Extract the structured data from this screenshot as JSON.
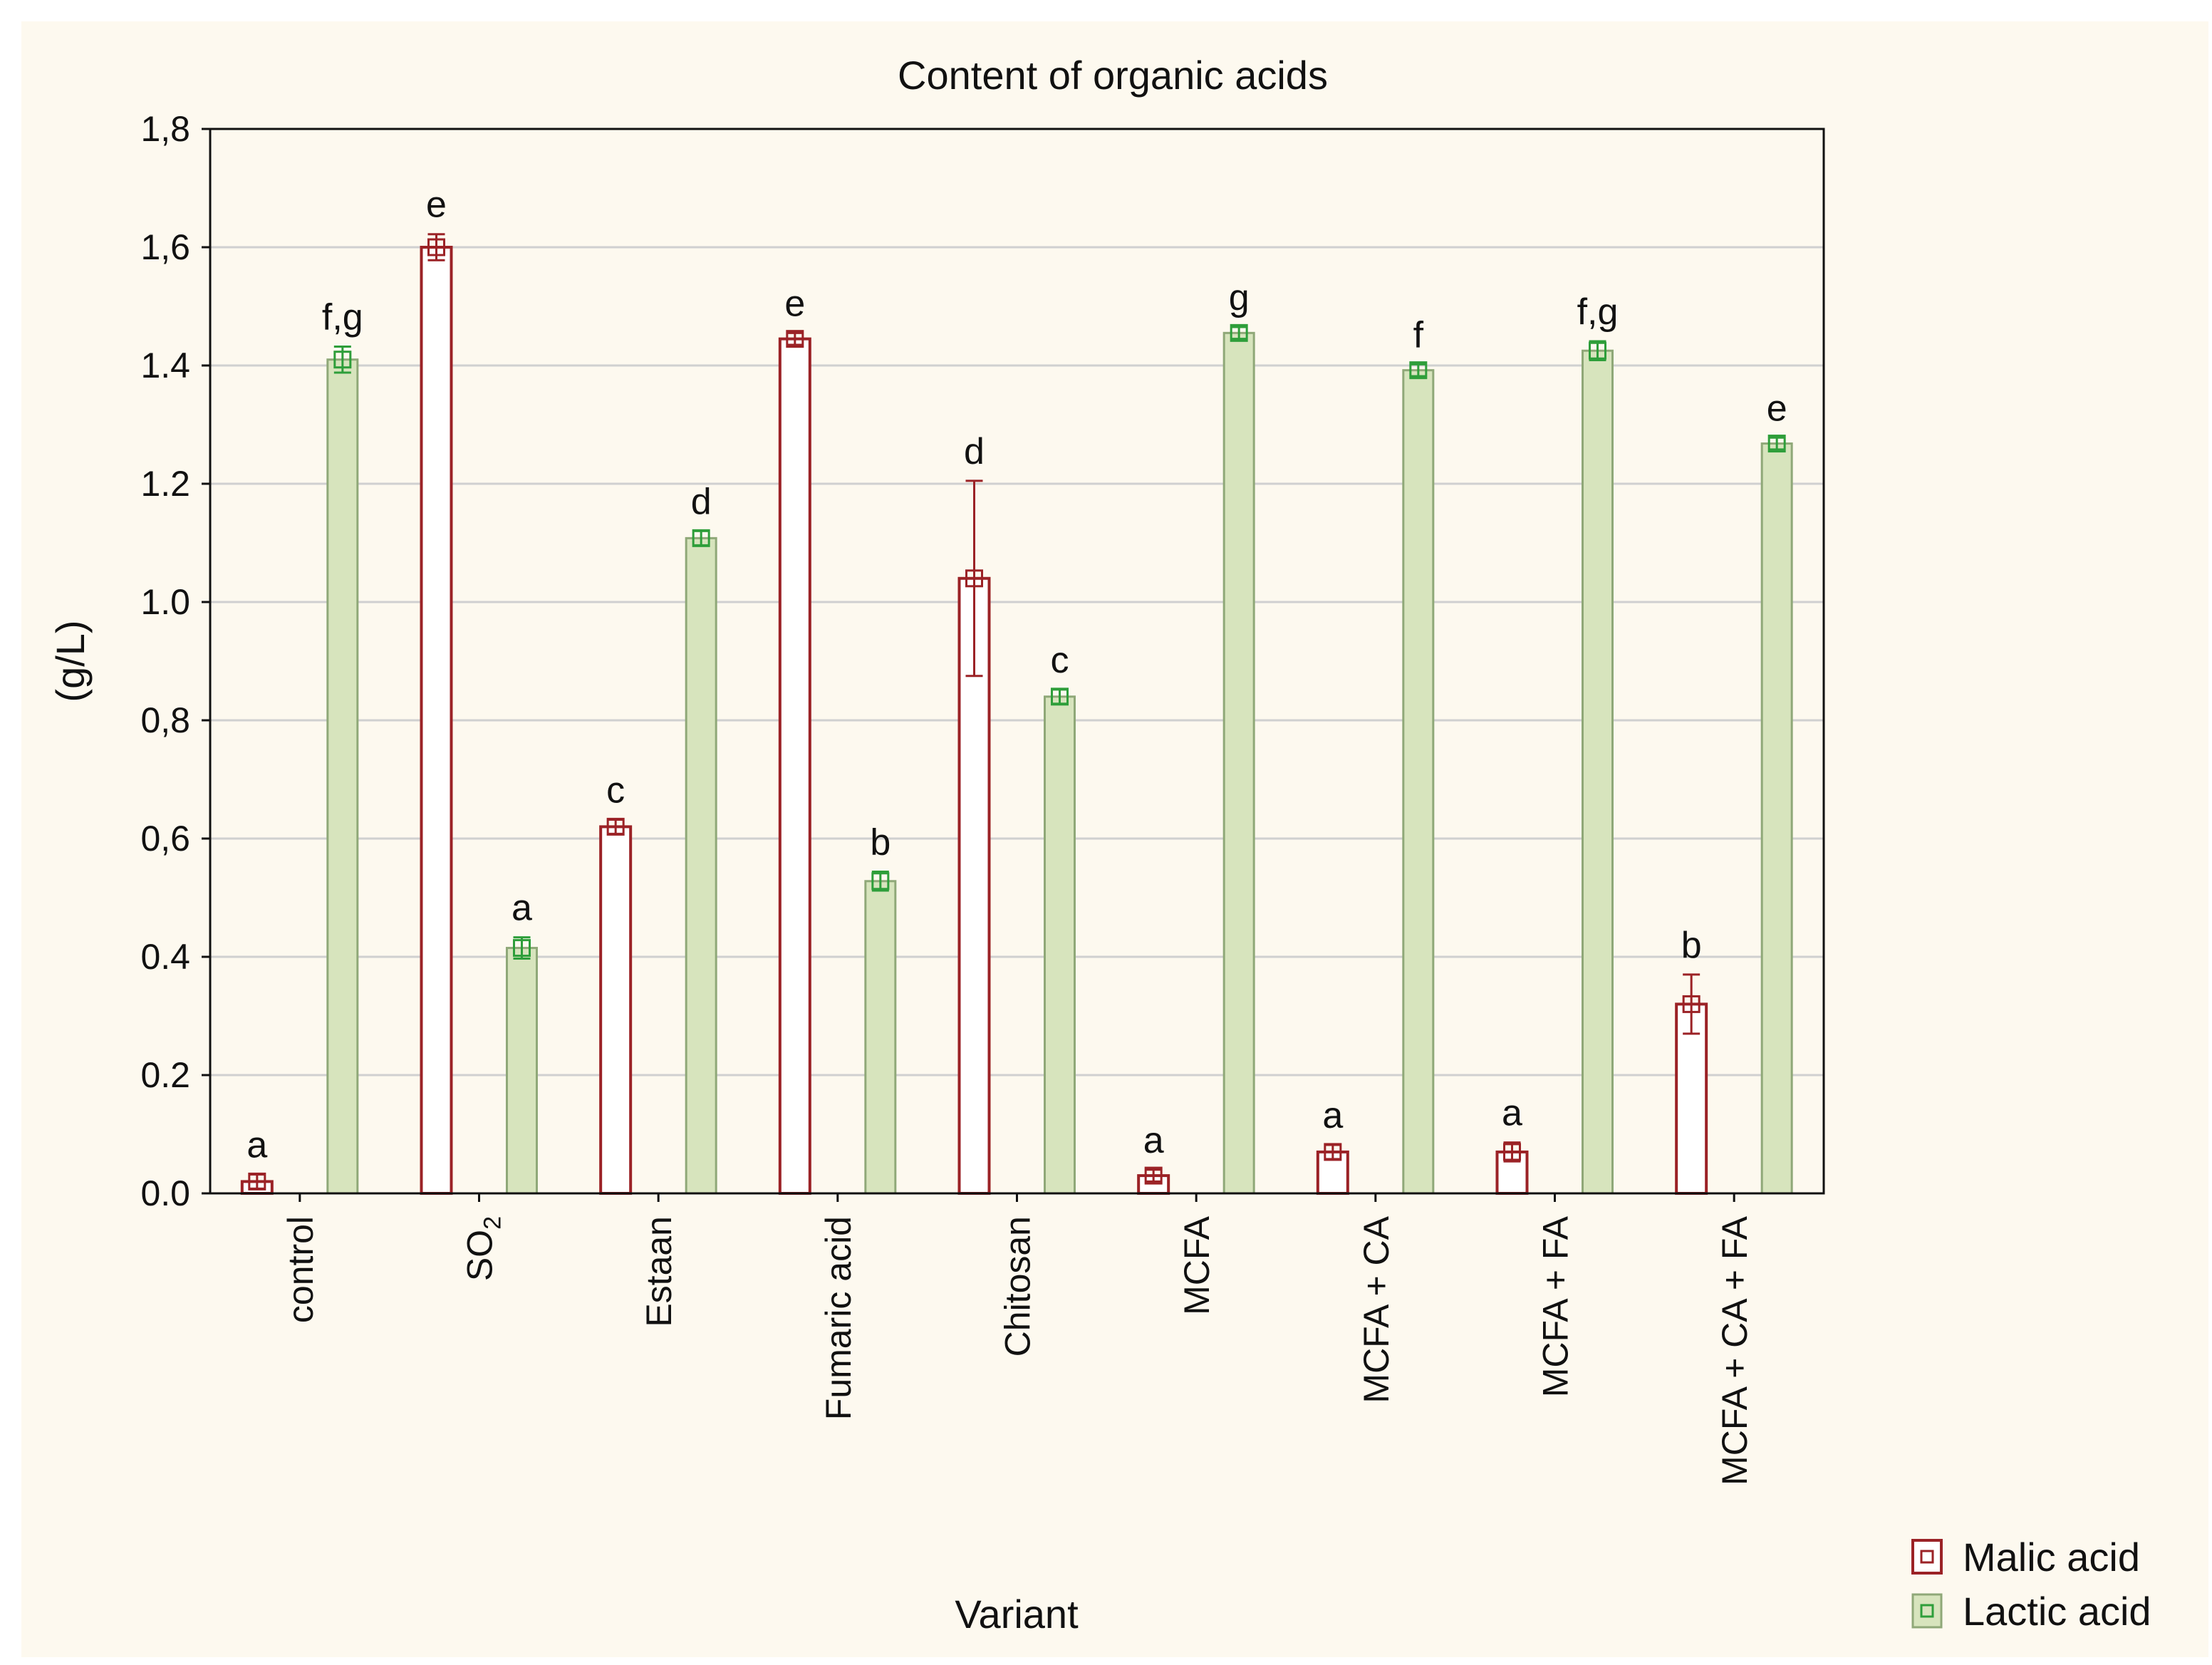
{
  "chart_data": {
    "type": "bar",
    "title": "Content of organic acids",
    "xlabel": "Variant",
    "ylabel": "(g/L)",
    "ylim": [
      0,
      1.8
    ],
    "yticks": [
      "0.0",
      "0.2",
      "0.4",
      "0,6",
      "0,8",
      "1.0",
      "1.2",
      "1.4",
      "1,6",
      "1,8"
    ],
    "grid": true,
    "legend_position": "bottom-right",
    "categories": [
      "control",
      "SO",
      "Estaan",
      "Fumaric acid",
      "Chitosan",
      "MCFA",
      "MCFA + CA",
      "MCFA + FA",
      "MCFA + CA + FA"
    ],
    "category_subscripts": [
      "",
      "2",
      "",
      "",
      "",
      "",
      "",
      "",
      ""
    ],
    "series": [
      {
        "name": "Malic acid",
        "color": "#9b2226",
        "fill": "#ffffff",
        "values": [
          0.02,
          1.6,
          0.62,
          1.445,
          1.04,
          0.03,
          0.07,
          0.07,
          0.32
        ],
        "errors": [
          0.012,
          0.022,
          0.012,
          0.01,
          0.165,
          0.01,
          0.012,
          0.016,
          0.05
        ],
        "labels": [
          "a",
          "e",
          "c",
          "e",
          "d",
          "a",
          "a",
          "a",
          "b"
        ]
      },
      {
        "name": "Lactic acid",
        "color": "#2e9e3a",
        "fill": "#d7e4bd",
        "values": [
          1.41,
          0.415,
          1.108,
          0.528,
          0.84,
          1.455,
          1.392,
          1.425,
          1.268
        ],
        "errors": [
          0.022,
          0.018,
          0.012,
          0.016,
          0.012,
          0.01,
          0.01,
          0.016,
          0.01
        ],
        "labels": [
          "f,g",
          "a",
          "d",
          "b",
          "c",
          "g",
          "f",
          "f,g",
          "e"
        ]
      }
    ]
  }
}
